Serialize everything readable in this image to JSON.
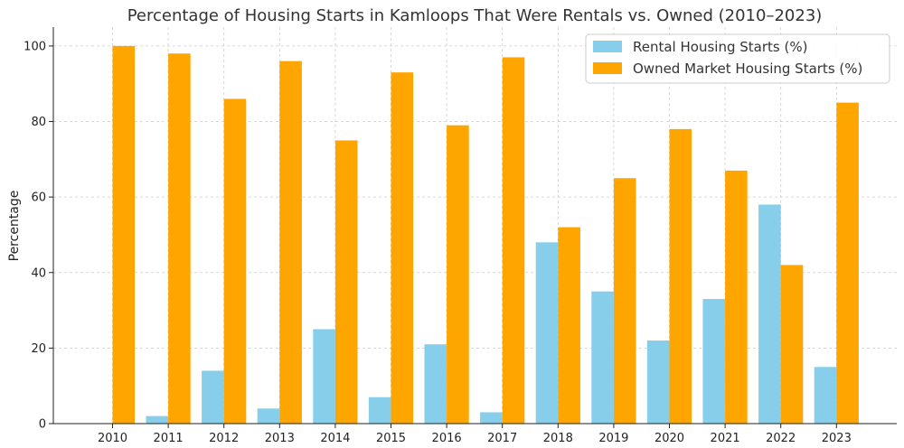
{
  "chart_data": {
    "type": "bar",
    "title": "Percentage of Housing Starts in Kamloops That Were Rentals vs. Owned (2010–2023)",
    "xlabel": "",
    "ylabel": "Percentage",
    "ylim": [
      0,
      105
    ],
    "yticks": [
      0,
      20,
      40,
      60,
      80,
      100
    ],
    "grid": true,
    "legend_position": "top-right",
    "categories": [
      "2010",
      "2011",
      "2012",
      "2013",
      "2014",
      "2015",
      "2016",
      "2017",
      "2018",
      "2019",
      "2020",
      "2021",
      "2022",
      "2023"
    ],
    "series": [
      {
        "name": "Rental Housing Starts (%)",
        "color": "#87CEEB",
        "values": [
          0,
          2,
          14,
          4,
          25,
          7,
          21,
          3,
          48,
          35,
          22,
          33,
          58,
          15
        ]
      },
      {
        "name": "Owned Market Housing Starts (%)",
        "color": "#FFA500",
        "values": [
          100,
          98,
          86,
          96,
          75,
          93,
          79,
          97,
          52,
          65,
          78,
          67,
          42,
          85
        ]
      }
    ]
  }
}
